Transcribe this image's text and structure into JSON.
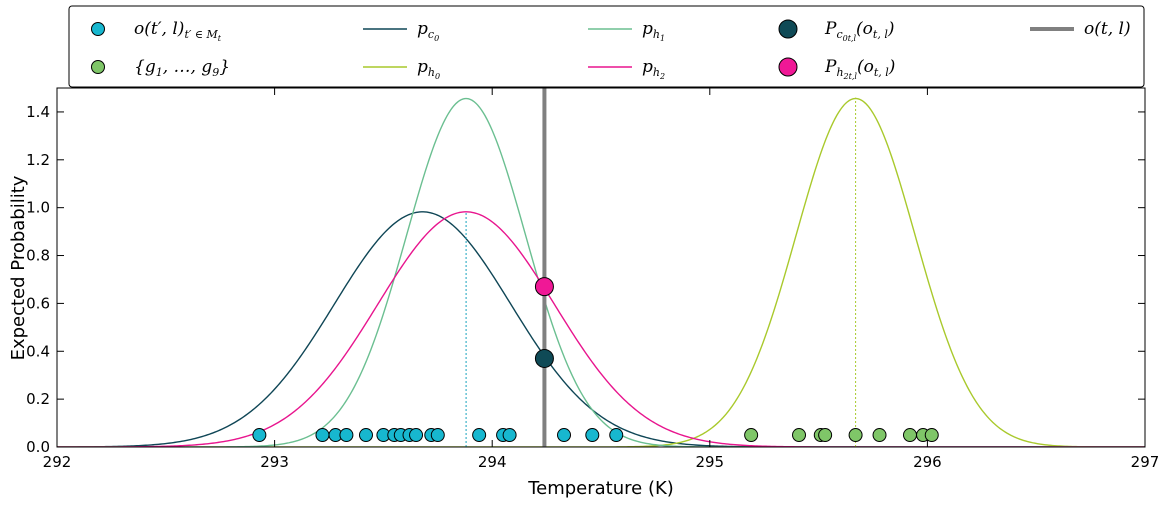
{
  "chart_data": {
    "type": "line",
    "title": "",
    "xlabel": "Temperature (K)",
    "ylabel": "Expected Probability",
    "xlim": [
      292,
      297
    ],
    "ylim": [
      0,
      1.5
    ],
    "xticks": [
      "292",
      "293",
      "294",
      "295",
      "296",
      "297"
    ],
    "yticks": [
      "0.0",
      "0.2",
      "0.4",
      "0.6",
      "0.8",
      "1.0",
      "1.2",
      "1.4"
    ],
    "grid": false,
    "legend_placement": "top",
    "observation_x": 294.24,
    "curves": [
      {
        "key": "pc0",
        "mean": 293.68,
        "std": 0.406,
        "color": "#0f4656"
      },
      {
        "key": "ph0",
        "mean": 295.67,
        "std": 0.274,
        "color": "#a9c92c"
      },
      {
        "key": "ph1",
        "mean": 293.88,
        "std": 0.274,
        "color": "#6bbf91"
      },
      {
        "key": "ph2",
        "mean": 293.88,
        "std": 0.406,
        "color": "#e8158e"
      }
    ],
    "dotted_mean_lines": [
      {
        "x": 293.88,
        "y": 0.98,
        "color": "#17a3bd"
      },
      {
        "x": 295.67,
        "y": 1.46,
        "color": "#a9c92c"
      }
    ],
    "past_observations": {
      "y": 0.05,
      "color": "#17b7cf",
      "x": [
        292.93,
        293.22,
        293.28,
        293.33,
        293.42,
        293.5,
        293.55,
        293.58,
        293.62,
        293.65,
        293.72,
        293.75,
        293.94,
        294.05,
        294.08,
        294.33,
        294.46,
        294.57
      ]
    },
    "generated_samples": {
      "y": 0.05,
      "color": "#7fc668",
      "x": [
        295.19,
        295.41,
        295.51,
        295.53,
        295.67,
        295.78,
        295.92,
        295.98,
        296.02
      ]
    },
    "highlight_points": [
      {
        "key": "P_c0",
        "x": 294.24,
        "y": 0.37,
        "color": "#0f4a56"
      },
      {
        "key": "P_h2",
        "x": 294.24,
        "y": 0.67,
        "color": "#f01896"
      }
    ],
    "legend": [
      {
        "key": "obs_past",
        "marker": "circle",
        "color": "#17b7cf",
        "base": "o(t′, l)",
        "sub": "t′ ∈ M",
        "subsub": "t"
      },
      {
        "key": "gens",
        "marker": "circle",
        "color": "#7fc668",
        "base": "{g",
        "sub": "1",
        "mid": ", …, g",
        "sub2": "9",
        "tail": "}"
      },
      {
        "key": "pc0",
        "marker": "line",
        "color": "#0f4656",
        "base": "p",
        "sub": "c",
        "subsub": "0"
      },
      {
        "key": "ph0",
        "marker": "line",
        "color": "#a9c92c",
        "base": "p",
        "sub": "h",
        "subsub": "0"
      },
      {
        "key": "ph1",
        "marker": "line",
        "color": "#6bbf91",
        "base": "p",
        "sub": "h",
        "subsub": "1"
      },
      {
        "key": "ph2",
        "marker": "line",
        "color": "#e8158e",
        "base": "p",
        "sub": "h",
        "subsub": "2"
      },
      {
        "key": "P_c0",
        "marker": "bigcircle",
        "color": "#0f4a56",
        "base": "P",
        "sub": "c",
        "subsub": "0t,l",
        "tail": "(o",
        "tailsub": "t, l",
        "end": ")"
      },
      {
        "key": "P_h2",
        "marker": "bigcircle",
        "color": "#f01896",
        "base": "P",
        "sub": "h",
        "subsub": "2t,l",
        "tail": "(o",
        "tailsub": "t, l",
        "end": ")"
      },
      {
        "key": "obs_now",
        "marker": "thickline",
        "color": "#808080",
        "base": "o(t, l)"
      }
    ]
  }
}
